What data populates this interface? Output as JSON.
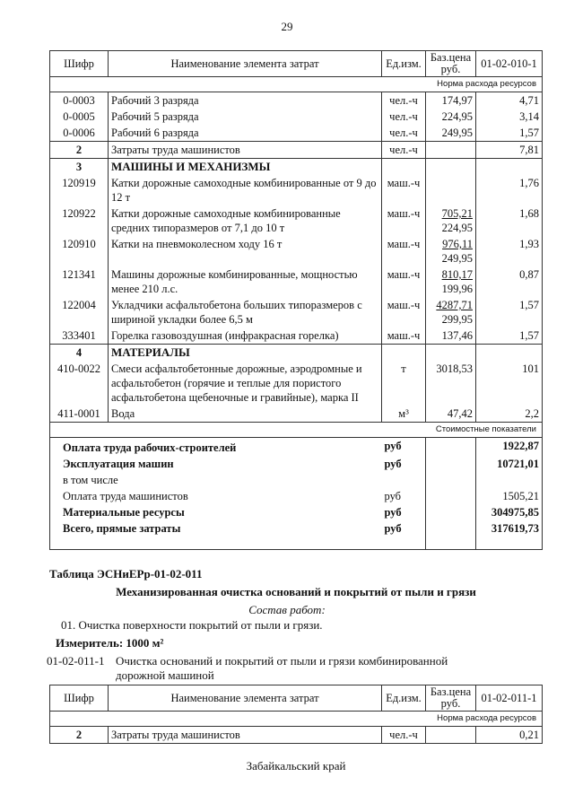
{
  "page_number": "29",
  "columns": {
    "code": "Шифр",
    "name": "Наименование элемента затрат",
    "unit": "Ед.изм.",
    "price": "Баз.цена руб."
  },
  "table1": {
    "code_header": "01-02-010-1",
    "norma_label": "Норма расхода ресурсов",
    "rows": [
      {
        "code": "0-0003",
        "name": "Рабочий 3 разряда",
        "unit": "чел.-ч",
        "price": "174,97",
        "value": "4,71"
      },
      {
        "code": "0-0005",
        "name": "Рабочий 5 разряда",
        "unit": "чел.-ч",
        "price": "224,95",
        "value": "3,14"
      },
      {
        "code": "0-0006",
        "name": "Рабочий 6 разряда",
        "unit": "чел.-ч",
        "price": "249,95",
        "value": "1,57",
        "end": true
      },
      {
        "code": "2",
        "code_bold": true,
        "name": "Затраты труда машинистов",
        "unit": "чел.-ч",
        "price": "",
        "value": "7,81",
        "end": true
      },
      {
        "code": "3",
        "code_bold": true,
        "name": "МАШИНЫ И МЕХАНИЗМЫ",
        "name_bold": true,
        "unit": "",
        "price": "",
        "value": ""
      },
      {
        "code": "120919",
        "name": "Катки дорожные самоходные комбинированные от 9 до 12 т",
        "unit": "маш.-ч",
        "price": "",
        "value": "1,76"
      },
      {
        "code": "120922",
        "name": "Катки дорожные самоходные комбинированные средних типоразмеров от 7,1 до 10 т",
        "unit": "маш.-ч",
        "price": "705,21",
        "price2": "224,95",
        "value": "1,68"
      },
      {
        "code": "120910",
        "name": "Катки на пневмоколесном ходу 16 т",
        "unit": "маш.-ч",
        "price": "976,11",
        "price2": "249,95",
        "value": "1,93"
      },
      {
        "code": "121341",
        "name": "Машины дорожные комбинированные, мощностью менее 210 л.с.",
        "unit": "маш.-ч",
        "price": "810,17",
        "price2": "199,96",
        "value": "0,87"
      },
      {
        "code": "122004",
        "name": "Укладчики асфальтобетона больших типоразмеров с шириной укладки более 6,5 м",
        "unit": "маш.-ч",
        "price": "4287,71",
        "price2": "299,95",
        "value": "1,57"
      },
      {
        "code": "333401",
        "name": "Горелка газовоздушная (инфракрасная горелка)",
        "unit": "маш.-ч",
        "price": "137,46",
        "value": "1,57",
        "end": true
      },
      {
        "code": "4",
        "code_bold": true,
        "name": "МАТЕРИАЛЫ",
        "name_bold": true,
        "unit": "",
        "price": "",
        "value": ""
      },
      {
        "code": "410-0022",
        "name": "Смеси асфальтобетонные дорожные, аэродромные и асфальтобетон (горячие и теплые для пористого асфальтобетона щебеночные и гравийные), марка II",
        "unit": "т",
        "price": "3018,53",
        "value": "101"
      },
      {
        "code": "411-0001",
        "name": "Вода",
        "unit": "м³",
        "price": "47,42",
        "value": "2,2",
        "end": true
      }
    ],
    "cost_label": "Стоимостные показатели",
    "summary": [
      {
        "name": "Оплата труда рабочих-строителей",
        "unit": "руб",
        "value": "1922,87",
        "bold": true
      },
      {
        "name": "Эксплуатация машин",
        "unit": "руб",
        "value": "10721,01",
        "bold": true
      },
      {
        "name": "в том числе",
        "unit": "",
        "value": ""
      },
      {
        "name": "Оплата труда машинистов",
        "unit": "руб",
        "value": "1505,21"
      },
      {
        "name": "Материальные ресурсы",
        "unit": "руб",
        "value": "304975,85",
        "bold": true
      },
      {
        "name": "Всего, прямые затраты",
        "unit": "руб",
        "value": "317619,73",
        "bold": true
      }
    ]
  },
  "section": {
    "table_title": "Таблица  ЭСНиЕРр-01-02-011",
    "subtitle": "Механизированная очистка оснований и покрытий от пыли и грязи",
    "composition_label": "Состав работ:",
    "composition_item": "01. Очистка поверхности покрытий от пыли и грязи.",
    "measure": "Измеритель: 1000 м²",
    "norm_code": "01-02-011-1",
    "norm_desc": "Очистка оснований и покрытий от пыли и грязи комбинированной дорожной машиной"
  },
  "table2": {
    "code_header": "01-02-011-1",
    "norma_label": "Норма расхода ресурсов",
    "rows": [
      {
        "code": "2",
        "code_bold": true,
        "name": "Затраты труда машинистов",
        "unit": "чел.-ч",
        "price": "",
        "value": "0,21",
        "end": true
      }
    ]
  },
  "footer": "Забайкальский край"
}
